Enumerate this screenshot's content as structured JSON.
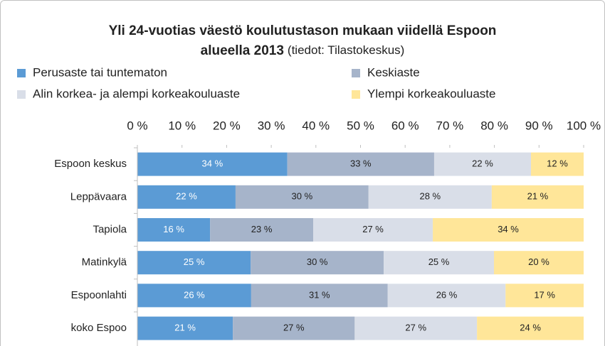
{
  "chart_data": {
    "type": "stacked_barh",
    "title": [
      "Yli 24-vuotias väestö koulutustason mukaan viidellä Espoon",
      "alueella 2013"
    ],
    "subtitle": "(tiedot: Tilastokeskus)",
    "categories": [
      "Espoon keskus",
      "Leppävaara",
      "Tapiola",
      "Matinkylä",
      "Espoonlahti",
      "koko Espoo"
    ],
    "series": [
      {
        "name": "Perusaste tai tuntematon",
        "color": "#5b9bd5",
        "label_color": "#ffffff",
        "values": [
          33.6,
          22.0,
          16.3,
          25.4,
          25.5,
          21.4
        ],
        "value_labels": [
          "34 %",
          "22 %",
          "16 %",
          "25 %",
          "26 %",
          "21 %"
        ]
      },
      {
        "name": "Keskiaste",
        "color": "#a6b4ca",
        "label_color": "#222222",
        "values": [
          32.9,
          29.8,
          23.1,
          29.8,
          30.6,
          27.3
        ],
        "value_labels": [
          "33 %",
          "30 %",
          "23 %",
          "30 %",
          "31 %",
          "27 %"
        ]
      },
      {
        "name": "Alin korkea- ja alempi korkeakouluaste",
        "color": "#d9dee8",
        "label_color": "#222222",
        "values": [
          21.7,
          27.6,
          26.8,
          24.7,
          26.4,
          27.4
        ],
        "value_labels": [
          "22 %",
          "28 %",
          "27 %",
          "25 %",
          "26 %",
          "27 %"
        ]
      },
      {
        "name": "Ylempi korkeakouluaste",
        "color": "#ffe699",
        "label_color": "#222222",
        "values": [
          11.8,
          20.6,
          33.8,
          20.1,
          17.5,
          23.9
        ],
        "value_labels": [
          "12 %",
          "21 %",
          "34 %",
          "20 %",
          "17 %",
          "24 %"
        ]
      }
    ],
    "xlim": [
      0,
      100
    ],
    "xticks": [
      {
        "value": 0,
        "label": "0 %"
      },
      {
        "value": 10,
        "label": "10 %"
      },
      {
        "value": 20,
        "label": "20 %"
      },
      {
        "value": 30,
        "label": "30 %"
      },
      {
        "value": 40,
        "label": "40 %"
      },
      {
        "value": 50,
        "label": "50 %"
      },
      {
        "value": 60,
        "label": "60 %"
      },
      {
        "value": 70,
        "label": "70 %"
      },
      {
        "value": 80,
        "label": "80 %"
      },
      {
        "value": 90,
        "label": "90 %"
      },
      {
        "value": 100,
        "label": "100 %"
      }
    ],
    "legend": "top"
  }
}
